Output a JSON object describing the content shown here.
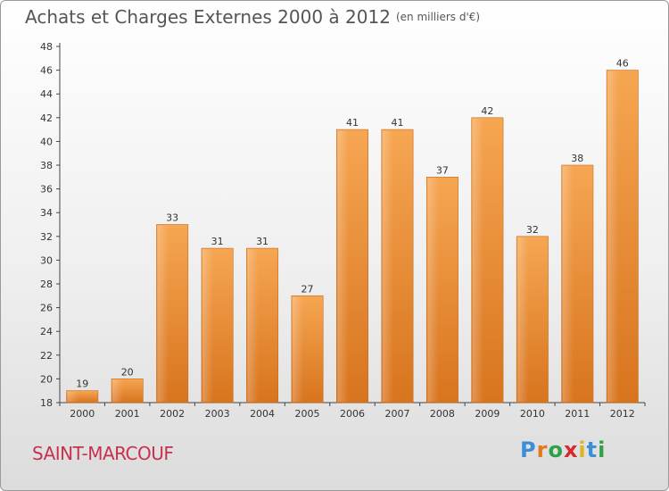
{
  "header": {
    "title": "Achats et Charges Externes 2000 à 2012",
    "unit": "(en milliers d'€)"
  },
  "footer": {
    "commune": "SAINT-MARCOUF",
    "brand": {
      "letters": [
        "P",
        "r",
        "o",
        "x",
        "i",
        "t",
        "i"
      ],
      "colors": [
        "#3d8ed8",
        "#e07a1a",
        "#2ea04a",
        "#d8282e",
        "#e0b41e",
        "#3d8ed8",
        "#2ea04a"
      ]
    }
  },
  "chart_data": {
    "type": "bar",
    "title": "Achats et Charges Externes 2000 à 2012",
    "subtitle": "(en milliers d'€)",
    "categories": [
      "2000",
      "2001",
      "2002",
      "2003",
      "2004",
      "2005",
      "2006",
      "2007",
      "2008",
      "2009",
      "2010",
      "2011",
      "2012"
    ],
    "values": [
      19,
      20,
      33,
      31,
      31,
      27,
      41,
      41,
      37,
      42,
      32,
      38,
      46
    ],
    "ylim": [
      18,
      48
    ],
    "yticks": [
      18,
      20,
      22,
      24,
      26,
      28,
      30,
      32,
      34,
      36,
      38,
      40,
      42,
      44,
      46,
      48
    ],
    "grid": false,
    "bar_color": "#f0963c"
  }
}
